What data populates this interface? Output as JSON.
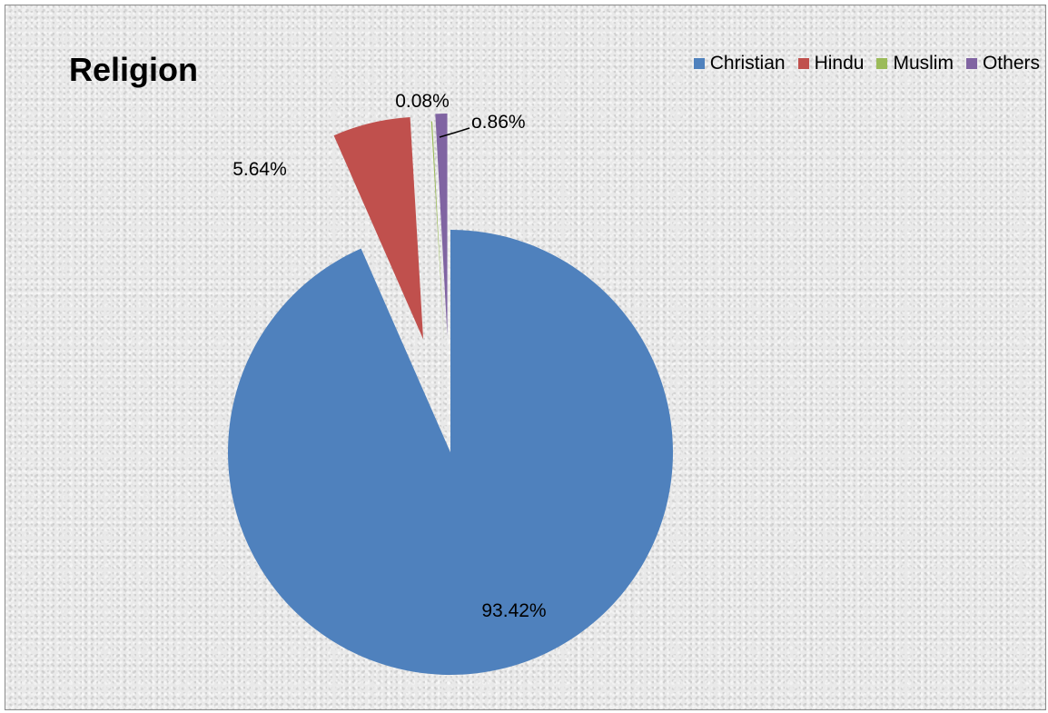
{
  "chart_data": {
    "type": "pie",
    "title": "Religion",
    "legend_position": "top-right",
    "slices": [
      {
        "label": "Christian",
        "value": 93.42,
        "display": "93.42%",
        "color": "#4f81bd"
      },
      {
        "label": "Hindu",
        "value": 5.64,
        "display": "5.64%",
        "color": "#c0504d"
      },
      {
        "label": "Muslim",
        "value": 0.08,
        "display": "0.08%",
        "color": "#9bbb59"
      },
      {
        "label": "Others",
        "value": 0.86,
        "display": "o.86%",
        "color": "#8064a2"
      }
    ]
  }
}
